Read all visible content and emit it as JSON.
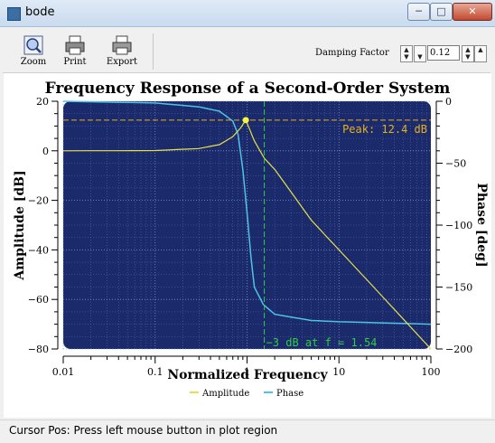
{
  "window": {
    "title": "bode"
  },
  "toolbar": {
    "zoom_label": "Zoom",
    "print_label": "Print",
    "export_label": "Export",
    "damping_label": "Damping Factor",
    "damping_value": "0.12"
  },
  "status": {
    "text": "Cursor Pos: Press left mouse button in plot region"
  },
  "colors": {
    "canvas": "#1a2a6b",
    "amplitude": "#e6e04a",
    "phase": "#4fc3e6",
    "marker": "#e6b020",
    "grid": "#8aa0d8"
  },
  "chart_data": {
    "type": "line",
    "title": "Frequency Response of a Second-Order System",
    "xlabel": "Normalized Frequency",
    "ylabel": "Amplitude [dB]",
    "y2label": "Phase [deg]",
    "x_scale": "log",
    "xlim": [
      0.01,
      100
    ],
    "ylim": [
      -80,
      20
    ],
    "y2lim": [
      -200,
      0
    ],
    "x_ticks": [
      0.01,
      0.1,
      1,
      10,
      100
    ],
    "x_tick_labels": [
      "0.01",
      "0.1",
      "1",
      "10",
      "100"
    ],
    "y_ticks": [
      20,
      0,
      -20,
      -40,
      -60,
      -80
    ],
    "y_tick_labels": [
      "20",
      "0",
      "−20",
      "−40",
      "−60",
      "−80"
    ],
    "y2_ticks": [
      0,
      -50,
      -100,
      -150,
      -200
    ],
    "y2_tick_labels": [
      "0",
      "−50",
      "−100",
      "−150",
      "−200"
    ],
    "grid": true,
    "legend_placement": "bottom-center",
    "series": [
      {
        "name": "Amplitude",
        "axis": "left",
        "x": [
          0.01,
          0.1,
          0.3,
          0.5,
          0.7,
          0.85,
          0.97,
          1.2,
          1.54,
          2,
          5,
          10,
          30,
          100
        ],
        "y": [
          0,
          0.1,
          0.9,
          2.5,
          5.7,
          9.2,
          12.4,
          4.0,
          -3.0,
          -7.5,
          -28,
          -40,
          -59,
          -80
        ]
      },
      {
        "name": "Phase",
        "axis": "right",
        "x": [
          0.01,
          0.1,
          0.3,
          0.5,
          0.7,
          0.8,
          0.9,
          1.0,
          1.1,
          1.2,
          1.5,
          2,
          5,
          10,
          100
        ],
        "y": [
          0,
          -1.4,
          -4.5,
          -8,
          -16,
          -27,
          -55,
          -90,
          -125,
          -150,
          -164,
          -172,
          -177,
          -178,
          -180
        ]
      }
    ],
    "annotations": [
      {
        "text": "Peak: 12.4 dB",
        "x": 0.97,
        "y": 12.4
      },
      {
        "text": "−3 dB at f = 1.54",
        "x": 1.54
      }
    ]
  }
}
